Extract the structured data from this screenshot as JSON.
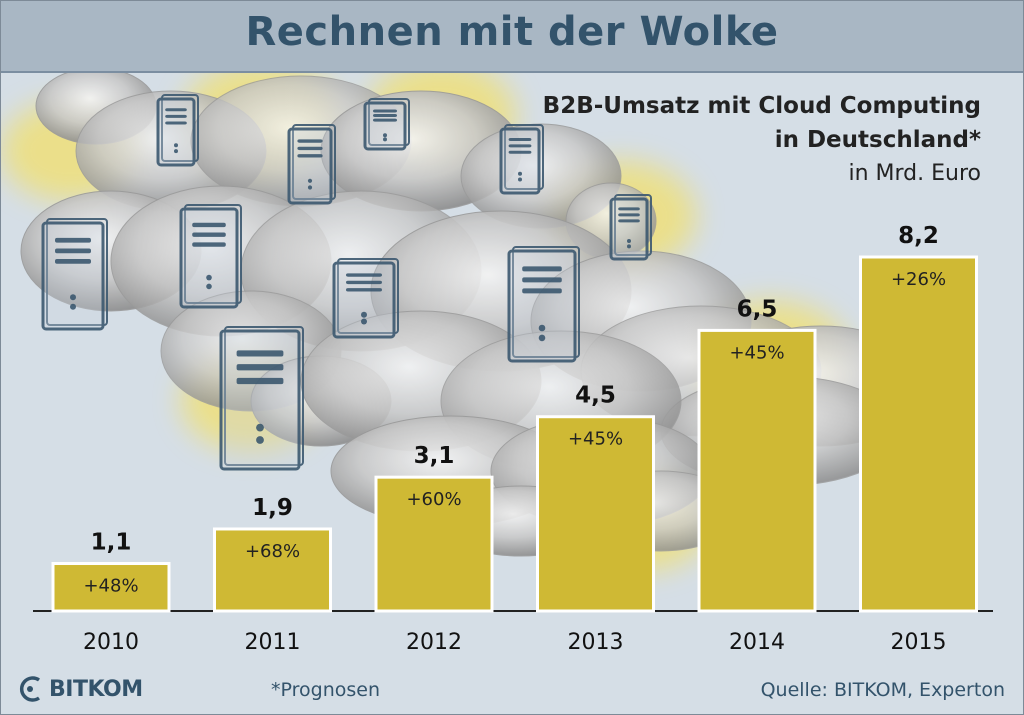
{
  "header": {
    "title": "Rechnen mit der Wolke"
  },
  "chart_data": {
    "type": "bar",
    "title": "B2B-Umsatz mit Cloud Computing in Deutschland*",
    "title_line1": "B2B-Umsatz mit Cloud Computing",
    "title_line2": "in Deutschland*",
    "unit": "in Mrd. Euro",
    "categories": [
      "2010",
      "2011",
      "2012",
      "2013",
      "2014",
      "2015"
    ],
    "values": [
      1.1,
      1.9,
      3.1,
      4.5,
      6.5,
      8.2
    ],
    "value_labels": [
      "1,1",
      "1,9",
      "3,1",
      "4,5",
      "6,5",
      "8,2"
    ],
    "growth_labels": [
      "+48%",
      "+68%",
      "+60%",
      "+45%",
      "+45%",
      "+26%"
    ],
    "ylim": [
      0,
      8.2
    ],
    "grid": false,
    "bar_color": "#cfb934"
  },
  "footer": {
    "footnote": "*Prognosen",
    "source": "Quelle: BITKOM, Experton",
    "logo_text": "BITKOM"
  },
  "colors": {
    "title_bar": "#a9b7c4",
    "title_text": "#33536b",
    "background": "#d5dee6"
  },
  "icons": [
    "server-icon",
    "cloud-illustration",
    "bitkom-logo-icon"
  ]
}
